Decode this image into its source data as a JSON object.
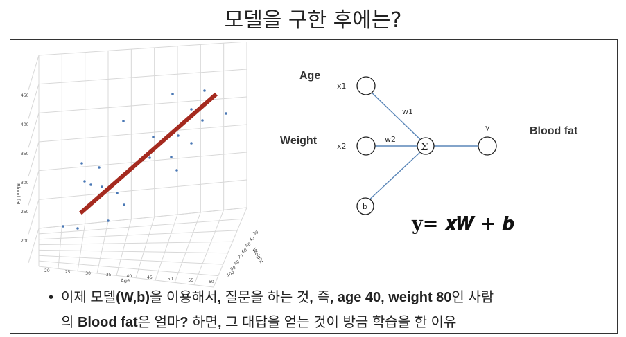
{
  "title": "모델을 구한 후에는?",
  "chart_data": {
    "type": "scatter",
    "xlabel": "Age",
    "ylabel": "Blood fat",
    "zlabel": "Weight",
    "x_ticks": [
      "20",
      "25",
      "30",
      "35",
      "40",
      "45",
      "50",
      "55",
      "60"
    ],
    "y_ticks": [
      "200",
      "250",
      "300",
      "350",
      "400",
      "450"
    ],
    "z_ticks": [
      "30",
      "40",
      "50",
      "60",
      "70",
      "80",
      "90",
      "100"
    ],
    "line_color": "#a52a1f",
    "point_color": "#4a78b5"
  },
  "diagram": {
    "inputs": [
      {
        "feature": "Age",
        "node": "x1",
        "weight": "w1"
      },
      {
        "feature": "Weight",
        "node": "x2",
        "weight": "w2"
      }
    ],
    "bias": "b",
    "sum": "Σ",
    "output_node": "y",
    "output_label": "Blood fat",
    "equation": "y= 𝒙𝑾 + 𝒃"
  },
  "bullet": {
    "p1": "이제 모델",
    "b1": "(W,b)",
    "p2": "을 이용해서",
    "b2": ",",
    "p3": " 질문을 하는 것",
    "b3": ",",
    "p4": " 즉",
    "b4": ", age 40, weight 80",
    "p5": "인 사람",
    "p6": "의 ",
    "b5": "Blood fat",
    "p7": "은 얼마",
    "b6": "?",
    "p8": " 하면",
    "b7": ",",
    "p9": " 그 대답을 얻는 것이 방금 학습을 한 이유"
  }
}
